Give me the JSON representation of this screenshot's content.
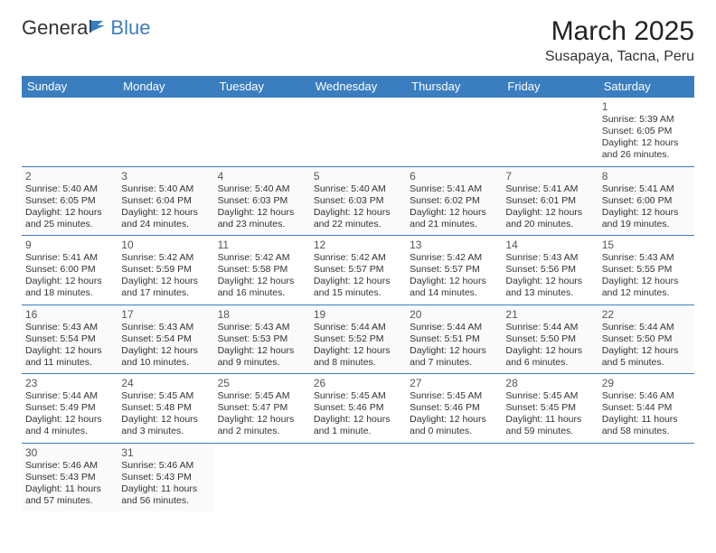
{
  "logo": {
    "general": "Genera",
    "blue": "Blue"
  },
  "title": "March 2025",
  "location": "Susapaya, Tacna, Peru",
  "colors": {
    "header_bg": "#3b7ec0",
    "header_text": "#ffffff",
    "rule": "#3b7ec0",
    "logo_blue": "#3b7ec0"
  },
  "day_labels": [
    "Sunday",
    "Monday",
    "Tuesday",
    "Wednesday",
    "Thursday",
    "Friday",
    "Saturday"
  ],
  "weeks": [
    [
      null,
      null,
      null,
      null,
      null,
      null,
      {
        "n": "1",
        "sr": "Sunrise: 5:39 AM",
        "ss": "Sunset: 6:05 PM",
        "d1": "Daylight: 12 hours",
        "d2": "and 26 minutes."
      }
    ],
    [
      {
        "n": "2",
        "sr": "Sunrise: 5:40 AM",
        "ss": "Sunset: 6:05 PM",
        "d1": "Daylight: 12 hours",
        "d2": "and 25 minutes."
      },
      {
        "n": "3",
        "sr": "Sunrise: 5:40 AM",
        "ss": "Sunset: 6:04 PM",
        "d1": "Daylight: 12 hours",
        "d2": "and 24 minutes."
      },
      {
        "n": "4",
        "sr": "Sunrise: 5:40 AM",
        "ss": "Sunset: 6:03 PM",
        "d1": "Daylight: 12 hours",
        "d2": "and 23 minutes."
      },
      {
        "n": "5",
        "sr": "Sunrise: 5:40 AM",
        "ss": "Sunset: 6:03 PM",
        "d1": "Daylight: 12 hours",
        "d2": "and 22 minutes."
      },
      {
        "n": "6",
        "sr": "Sunrise: 5:41 AM",
        "ss": "Sunset: 6:02 PM",
        "d1": "Daylight: 12 hours",
        "d2": "and 21 minutes."
      },
      {
        "n": "7",
        "sr": "Sunrise: 5:41 AM",
        "ss": "Sunset: 6:01 PM",
        "d1": "Daylight: 12 hours",
        "d2": "and 20 minutes."
      },
      {
        "n": "8",
        "sr": "Sunrise: 5:41 AM",
        "ss": "Sunset: 6:00 PM",
        "d1": "Daylight: 12 hours",
        "d2": "and 19 minutes."
      }
    ],
    [
      {
        "n": "9",
        "sr": "Sunrise: 5:41 AM",
        "ss": "Sunset: 6:00 PM",
        "d1": "Daylight: 12 hours",
        "d2": "and 18 minutes."
      },
      {
        "n": "10",
        "sr": "Sunrise: 5:42 AM",
        "ss": "Sunset: 5:59 PM",
        "d1": "Daylight: 12 hours",
        "d2": "and 17 minutes."
      },
      {
        "n": "11",
        "sr": "Sunrise: 5:42 AM",
        "ss": "Sunset: 5:58 PM",
        "d1": "Daylight: 12 hours",
        "d2": "and 16 minutes."
      },
      {
        "n": "12",
        "sr": "Sunrise: 5:42 AM",
        "ss": "Sunset: 5:57 PM",
        "d1": "Daylight: 12 hours",
        "d2": "and 15 minutes."
      },
      {
        "n": "13",
        "sr": "Sunrise: 5:42 AM",
        "ss": "Sunset: 5:57 PM",
        "d1": "Daylight: 12 hours",
        "d2": "and 14 minutes."
      },
      {
        "n": "14",
        "sr": "Sunrise: 5:43 AM",
        "ss": "Sunset: 5:56 PM",
        "d1": "Daylight: 12 hours",
        "d2": "and 13 minutes."
      },
      {
        "n": "15",
        "sr": "Sunrise: 5:43 AM",
        "ss": "Sunset: 5:55 PM",
        "d1": "Daylight: 12 hours",
        "d2": "and 12 minutes."
      }
    ],
    [
      {
        "n": "16",
        "sr": "Sunrise: 5:43 AM",
        "ss": "Sunset: 5:54 PM",
        "d1": "Daylight: 12 hours",
        "d2": "and 11 minutes."
      },
      {
        "n": "17",
        "sr": "Sunrise: 5:43 AM",
        "ss": "Sunset: 5:54 PM",
        "d1": "Daylight: 12 hours",
        "d2": "and 10 minutes."
      },
      {
        "n": "18",
        "sr": "Sunrise: 5:43 AM",
        "ss": "Sunset: 5:53 PM",
        "d1": "Daylight: 12 hours",
        "d2": "and 9 minutes."
      },
      {
        "n": "19",
        "sr": "Sunrise: 5:44 AM",
        "ss": "Sunset: 5:52 PM",
        "d1": "Daylight: 12 hours",
        "d2": "and 8 minutes."
      },
      {
        "n": "20",
        "sr": "Sunrise: 5:44 AM",
        "ss": "Sunset: 5:51 PM",
        "d1": "Daylight: 12 hours",
        "d2": "and 7 minutes."
      },
      {
        "n": "21",
        "sr": "Sunrise: 5:44 AM",
        "ss": "Sunset: 5:50 PM",
        "d1": "Daylight: 12 hours",
        "d2": "and 6 minutes."
      },
      {
        "n": "22",
        "sr": "Sunrise: 5:44 AM",
        "ss": "Sunset: 5:50 PM",
        "d1": "Daylight: 12 hours",
        "d2": "and 5 minutes."
      }
    ],
    [
      {
        "n": "23",
        "sr": "Sunrise: 5:44 AM",
        "ss": "Sunset: 5:49 PM",
        "d1": "Daylight: 12 hours",
        "d2": "and 4 minutes."
      },
      {
        "n": "24",
        "sr": "Sunrise: 5:45 AM",
        "ss": "Sunset: 5:48 PM",
        "d1": "Daylight: 12 hours",
        "d2": "and 3 minutes."
      },
      {
        "n": "25",
        "sr": "Sunrise: 5:45 AM",
        "ss": "Sunset: 5:47 PM",
        "d1": "Daylight: 12 hours",
        "d2": "and 2 minutes."
      },
      {
        "n": "26",
        "sr": "Sunrise: 5:45 AM",
        "ss": "Sunset: 5:46 PM",
        "d1": "Daylight: 12 hours",
        "d2": "and 1 minute."
      },
      {
        "n": "27",
        "sr": "Sunrise: 5:45 AM",
        "ss": "Sunset: 5:46 PM",
        "d1": "Daylight: 12 hours",
        "d2": "and 0 minutes."
      },
      {
        "n": "28",
        "sr": "Sunrise: 5:45 AM",
        "ss": "Sunset: 5:45 PM",
        "d1": "Daylight: 11 hours",
        "d2": "and 59 minutes."
      },
      {
        "n": "29",
        "sr": "Sunrise: 5:46 AM",
        "ss": "Sunset: 5:44 PM",
        "d1": "Daylight: 11 hours",
        "d2": "and 58 minutes."
      }
    ],
    [
      {
        "n": "30",
        "sr": "Sunrise: 5:46 AM",
        "ss": "Sunset: 5:43 PM",
        "d1": "Daylight: 11 hours",
        "d2": "and 57 minutes."
      },
      {
        "n": "31",
        "sr": "Sunrise: 5:46 AM",
        "ss": "Sunset: 5:43 PM",
        "d1": "Daylight: 11 hours",
        "d2": "and 56 minutes."
      },
      null,
      null,
      null,
      null,
      null
    ]
  ]
}
